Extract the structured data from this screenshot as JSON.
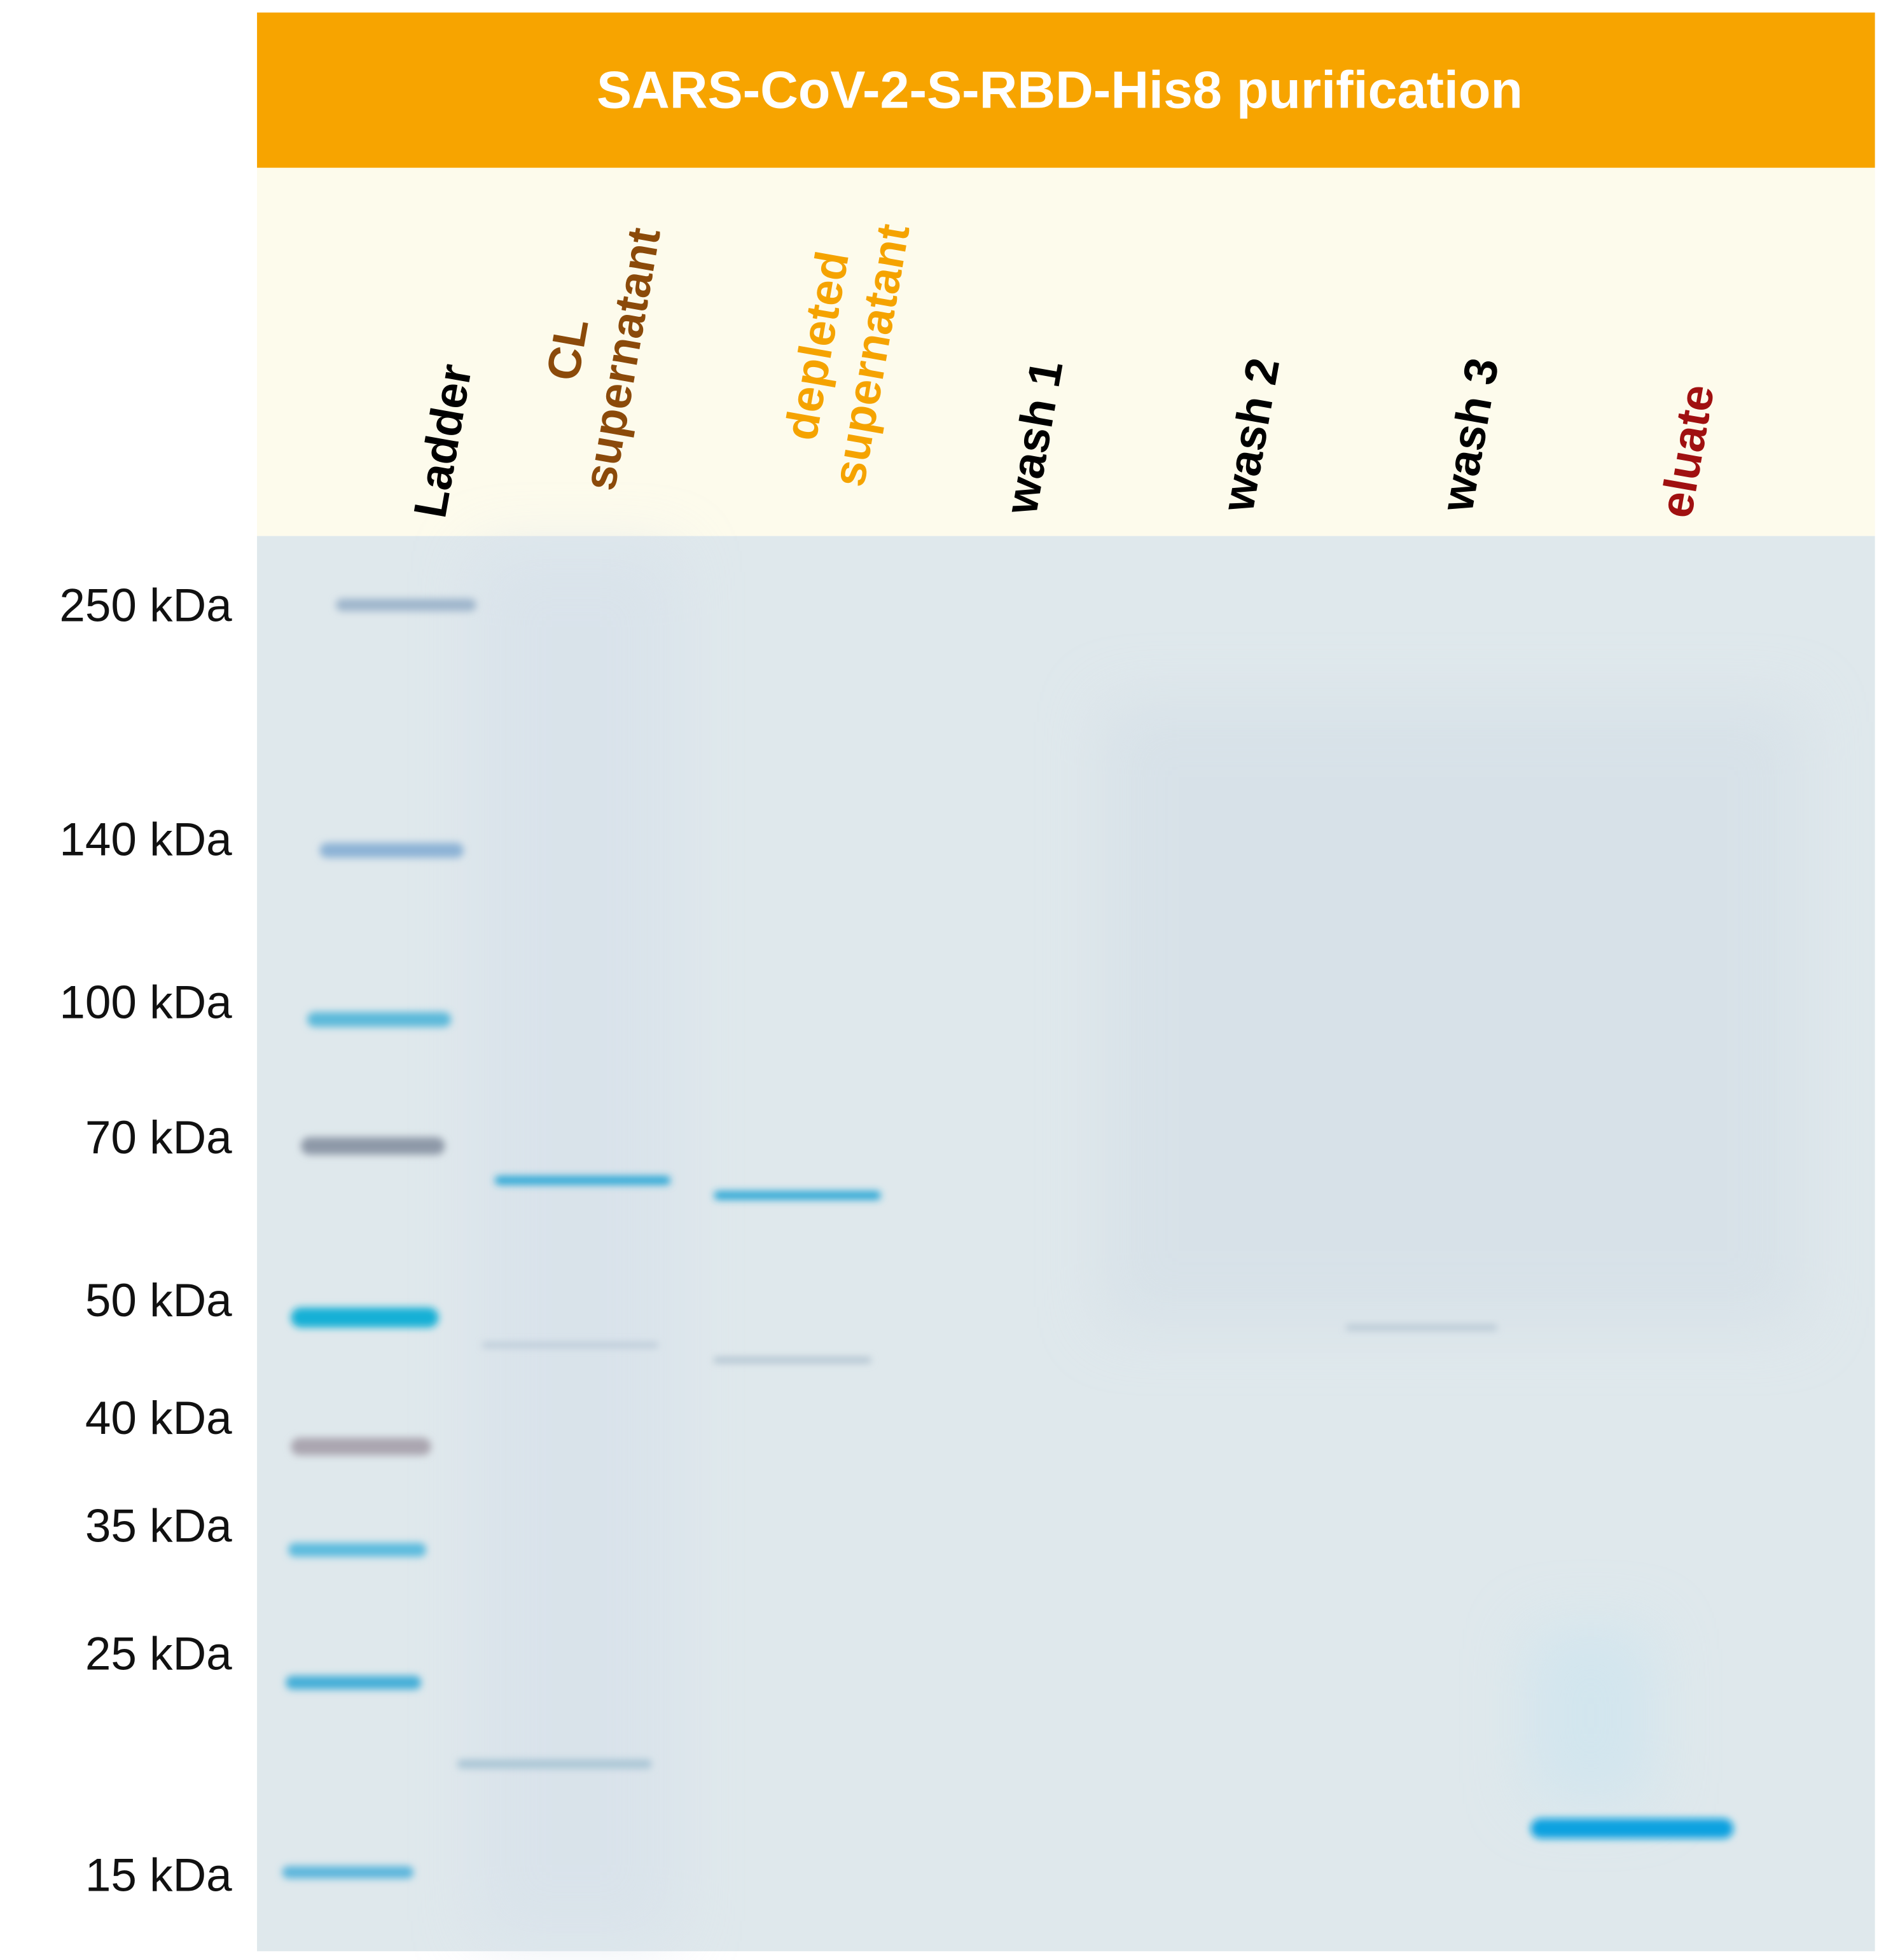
{
  "title": "SARS-CoV-2-S-RBD-His8 purification",
  "lanes": [
    {
      "label": [
        "Ladder"
      ]
    },
    {
      "label": [
        "CL",
        "supernatant"
      ]
    },
    {
      "label": [
        "depleted",
        "supernatant"
      ]
    },
    {
      "label": [
        "wash 1"
      ]
    },
    {
      "label": [
        "wash 2"
      ]
    },
    {
      "label": [
        "wash 3"
      ]
    },
    {
      "label": [
        "eluate"
      ]
    }
  ],
  "markers": [
    "250 kDa",
    "140 kDa",
    "100 kDa",
    "70 kDa",
    "50 kDa",
    "40 kDa",
    "35 kDa",
    "25 kDa",
    "15 kDa"
  ]
}
